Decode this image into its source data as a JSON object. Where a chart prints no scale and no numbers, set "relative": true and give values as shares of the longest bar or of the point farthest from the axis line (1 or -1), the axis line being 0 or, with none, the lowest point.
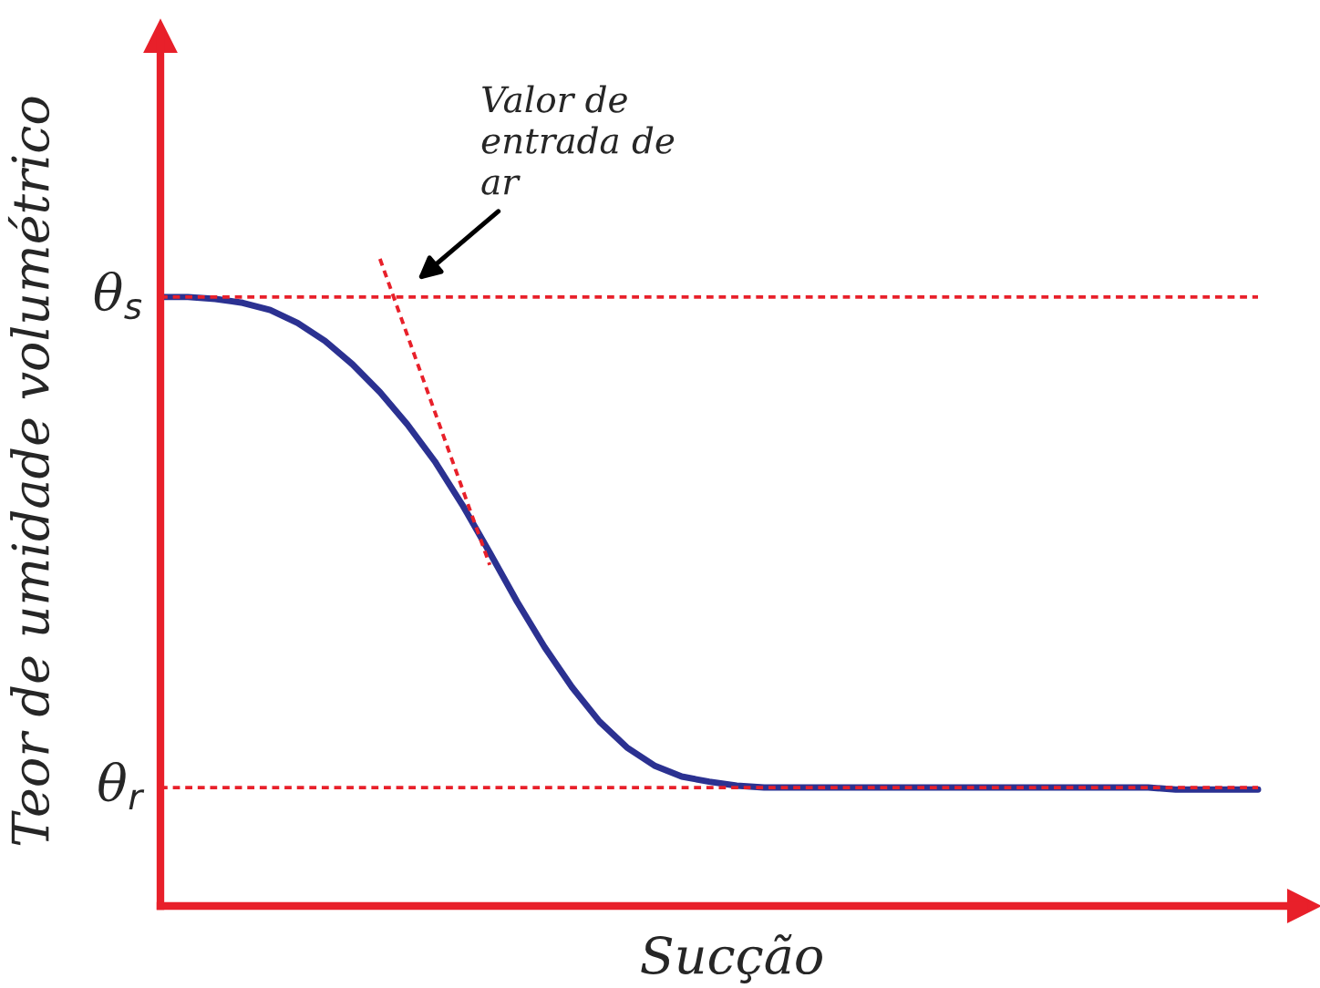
{
  "chart_data": {
    "type": "line",
    "relative": true,
    "xlabel": "Sucção",
    "ylabel": "Teor de umidade volumétrico",
    "categories": [
      null,
      null,
      null,
      null,
      null,
      null,
      null,
      null,
      null,
      null,
      null,
      null,
      null,
      null,
      null,
      null,
      null,
      null,
      null,
      null,
      null,
      null,
      null,
      null,
      null,
      null,
      null,
      null,
      null,
      null,
      null,
      null,
      null,
      null,
      null,
      null,
      null,
      null,
      null,
      null,
      null
    ],
    "series": [
      {
        "color": "#2b3191",
        "line_style": "solid",
        "values": [
          0.941,
          0.941,
          0.938,
          0.932,
          0.921,
          0.901,
          0.873,
          0.837,
          0.794,
          0.744,
          0.687,
          0.62,
          0.546,
          0.47,
          0.4,
          0.338,
          0.285,
          0.245,
          0.217,
          0.2,
          0.192,
          0.186,
          0.183,
          0.183,
          0.183,
          0.183,
          0.183,
          0.183,
          0.183,
          0.183,
          0.183,
          0.183,
          0.183,
          0.183,
          0.183,
          0.183,
          0.183,
          0.18,
          0.18,
          0.18,
          0.18
        ]
      },
      {
        "color": "#e8202a",
        "line_style": "dotted",
        "values": [
          null,
          null,
          null,
          null,
          null,
          null,
          null,
          null,
          1.0,
          null,
          null,
          null,
          0.527,
          null,
          null,
          null,
          null,
          null,
          null,
          null,
          null,
          null,
          null,
          null,
          null,
          null,
          null,
          null,
          null,
          null,
          null,
          null,
          null,
          null,
          null,
          null,
          null,
          null,
          null,
          null,
          null
        ]
      }
    ],
    "ref_lines": [
      {
        "axis": "y",
        "value": 0.941,
        "label": "θ$_{s}$",
        "color": "#e8202a",
        "line_style": "dotted"
      },
      {
        "axis": "y",
        "value": 0.183,
        "label": "θ$_{r}$",
        "color": "#e8202a",
        "line_style": "dotted"
      }
    ],
    "annotations": [
      "Valor de\nentrada de\nar"
    ],
    "legend": false,
    "grid": false,
    "marker": "none"
  }
}
